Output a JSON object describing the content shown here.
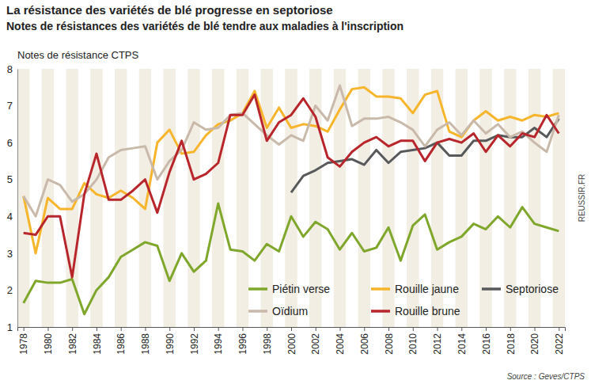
{
  "chart_data": {
    "type": "line",
    "title": "La résistance des variétés de blé progresse en septoriose",
    "subtitle": "Notes de résistances des variétés de blé tendre aux maladies à l'inscription",
    "y_label": "Notes de résistance CTPS",
    "source": "Source : Geves/CTPS",
    "credit": "REUSSIR.FR",
    "x": [
      1978,
      1979,
      1980,
      1981,
      1982,
      1983,
      1984,
      1985,
      1986,
      1987,
      1988,
      1989,
      1990,
      1991,
      1992,
      1993,
      1994,
      1995,
      1996,
      1997,
      1998,
      1999,
      2000,
      2001,
      2002,
      2003,
      2004,
      2005,
      2006,
      2007,
      2008,
      2009,
      2010,
      2011,
      2012,
      2013,
      2014,
      2015,
      2016,
      2017,
      2018,
      2019,
      2020,
      2021,
      2022
    ],
    "xlim": [
      1977.5,
      2022.5
    ],
    "xticks": [
      1978,
      1980,
      1982,
      1984,
      1986,
      1988,
      1990,
      1992,
      1994,
      1996,
      1998,
      2000,
      2002,
      2004,
      2006,
      2008,
      2010,
      2012,
      2014,
      2016,
      2018,
      2020,
      2022
    ],
    "ylim": [
      1,
      8
    ],
    "yticks": [
      1,
      2,
      3,
      4,
      5,
      6,
      7,
      8
    ],
    "grid": false,
    "legend": "lower right",
    "series": [
      {
        "name": "Piétin verse",
        "color": "#7ea72b",
        "values": [
          1.65,
          2.25,
          2.2,
          2.2,
          2.3,
          1.35,
          2.0,
          2.35,
          2.9,
          3.1,
          3.3,
          3.2,
          2.25,
          3.0,
          2.5,
          2.8,
          4.35,
          3.1,
          3.05,
          2.8,
          3.25,
          3.05,
          4.0,
          3.45,
          3.85,
          3.65,
          3.1,
          3.55,
          3.05,
          3.15,
          3.7,
          2.8,
          3.75,
          4.05,
          3.1,
          3.3,
          3.45,
          3.8,
          3.65,
          4.0,
          3.7,
          4.25,
          3.8,
          3.7,
          3.6
        ]
      },
      {
        "name": "Rouille jaune",
        "color": "#f7b52c",
        "values": [
          4.55,
          3.0,
          4.5,
          4.2,
          4.2,
          4.9,
          4.6,
          4.5,
          4.7,
          4.5,
          4.2,
          6.0,
          6.35,
          5.7,
          5.75,
          6.2,
          6.5,
          6.6,
          6.8,
          7.4,
          6.4,
          6.95,
          6.4,
          6.5,
          6.45,
          6.3,
          6.9,
          7.45,
          7.5,
          7.25,
          7.25,
          7.2,
          6.8,
          7.3,
          7.4,
          6.3,
          6.15,
          6.6,
          6.85,
          6.6,
          6.7,
          6.6,
          6.75,
          6.7,
          6.8
        ]
      },
      {
        "name": "Septoriose",
        "color": "#58595b",
        "values": [
          null,
          null,
          null,
          null,
          null,
          null,
          null,
          null,
          null,
          null,
          null,
          null,
          null,
          null,
          null,
          null,
          null,
          null,
          null,
          null,
          null,
          null,
          4.65,
          5.1,
          5.25,
          5.45,
          5.5,
          5.55,
          5.4,
          5.8,
          5.45,
          5.75,
          5.8,
          5.85,
          6.0,
          5.65,
          5.65,
          6.05,
          6.05,
          6.2,
          6.15,
          6.15,
          6.4,
          6.15,
          6.65
        ]
      },
      {
        "name": "Oïdium",
        "color": "#c9b9ab",
        "values": [
          4.55,
          4.0,
          5.0,
          4.85,
          4.4,
          4.6,
          5.0,
          5.6,
          5.8,
          5.85,
          5.9,
          5.0,
          5.5,
          5.8,
          6.55,
          6.35,
          6.4,
          6.75,
          6.8,
          6.5,
          6.2,
          5.95,
          6.2,
          6.05,
          7.0,
          6.6,
          7.55,
          6.45,
          6.65,
          6.65,
          6.7,
          6.55,
          6.35,
          5.9,
          6.35,
          6.55,
          6.2,
          6.6,
          6.25,
          6.5,
          6.15,
          6.3,
          6.0,
          5.75,
          6.75
        ]
      },
      {
        "name": "Rouille brune",
        "color": "#b8262c",
        "values": [
          3.55,
          3.5,
          4.0,
          4.0,
          2.35,
          4.6,
          5.7,
          4.45,
          4.45,
          4.7,
          5.0,
          4.1,
          5.2,
          6.05,
          5.0,
          5.15,
          5.45,
          6.75,
          6.75,
          7.3,
          6.05,
          6.55,
          6.75,
          7.2,
          6.7,
          5.6,
          5.35,
          5.75,
          6.0,
          6.15,
          5.9,
          6.05,
          6.05,
          5.5,
          6.0,
          6.1,
          6.0,
          6.25,
          5.75,
          6.2,
          5.9,
          6.25,
          6.15,
          6.75,
          6.25
        ]
      }
    ]
  }
}
